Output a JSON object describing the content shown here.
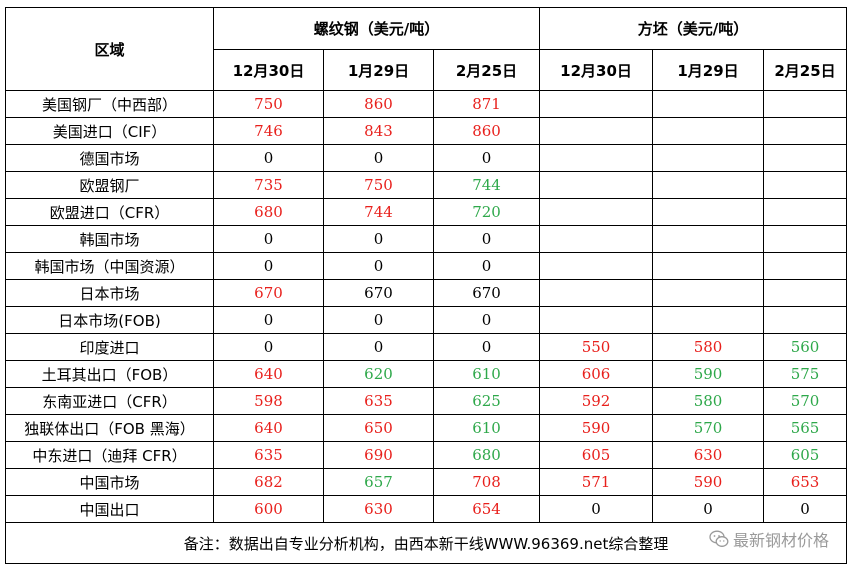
{
  "header": {
    "region_label": "区域",
    "group_rebar": "螺纹钢（美元/吨）",
    "group_billet": "方坯（美元/吨）",
    "dates": [
      "12月30日",
      "1月29日",
      "2月25日",
      "12月30日",
      "1月29日",
      "2月25日"
    ]
  },
  "colors": {
    "up": "#e8201c",
    "down": "#2ea84a",
    "flat": "#000000"
  },
  "rows": [
    {
      "region": "美国钢厂（中西部）",
      "cells": [
        [
          "750",
          "up"
        ],
        [
          "860",
          "up"
        ],
        [
          "871",
          "up"
        ],
        [
          "",
          ""
        ],
        [
          "",
          ""
        ],
        [
          "",
          ""
        ]
      ]
    },
    {
      "region": "美国进口（CIF）",
      "cells": [
        [
          "746",
          "up"
        ],
        [
          "843",
          "up"
        ],
        [
          "860",
          "up"
        ],
        [
          "",
          ""
        ],
        [
          "",
          ""
        ],
        [
          "",
          ""
        ]
      ]
    },
    {
      "region": "德国市场",
      "cells": [
        [
          "0",
          "flat"
        ],
        [
          "0",
          "flat"
        ],
        [
          "0",
          "flat"
        ],
        [
          "",
          ""
        ],
        [
          "",
          ""
        ],
        [
          "",
          ""
        ]
      ]
    },
    {
      "region": "欧盟钢厂",
      "cells": [
        [
          "735",
          "up"
        ],
        [
          "750",
          "up"
        ],
        [
          "744",
          "down"
        ],
        [
          "",
          ""
        ],
        [
          "",
          ""
        ],
        [
          "",
          ""
        ]
      ]
    },
    {
      "region": "欧盟进口（CFR）",
      "cells": [
        [
          "680",
          "up"
        ],
        [
          "744",
          "up"
        ],
        [
          "720",
          "down"
        ],
        [
          "",
          ""
        ],
        [
          "",
          ""
        ],
        [
          "",
          ""
        ]
      ]
    },
    {
      "region": "韩国市场",
      "cells": [
        [
          "0",
          "flat"
        ],
        [
          "0",
          "flat"
        ],
        [
          "0",
          "flat"
        ],
        [
          "",
          ""
        ],
        [
          "",
          ""
        ],
        [
          "",
          ""
        ]
      ]
    },
    {
      "region": "韩国市场（中国资源）",
      "cells": [
        [
          "0",
          "flat"
        ],
        [
          "0",
          "flat"
        ],
        [
          "0",
          "flat"
        ],
        [
          "",
          ""
        ],
        [
          "",
          ""
        ],
        [
          "",
          ""
        ]
      ]
    },
    {
      "region": "日本市场",
      "cells": [
        [
          "670",
          "up"
        ],
        [
          "670",
          "flat"
        ],
        [
          "670",
          "flat"
        ],
        [
          "",
          ""
        ],
        [
          "",
          ""
        ],
        [
          "",
          ""
        ]
      ]
    },
    {
      "region": "日本市场(FOB)",
      "cells": [
        [
          "0",
          "flat"
        ],
        [
          "0",
          "flat"
        ],
        [
          "0",
          "flat"
        ],
        [
          "",
          ""
        ],
        [
          "",
          ""
        ],
        [
          "",
          ""
        ]
      ]
    },
    {
      "region": "印度进口",
      "cells": [
        [
          "0",
          "flat"
        ],
        [
          "0",
          "flat"
        ],
        [
          "0",
          "flat"
        ],
        [
          "550",
          "up"
        ],
        [
          "580",
          "up"
        ],
        [
          "560",
          "down"
        ]
      ]
    },
    {
      "region": "土耳其出口（FOB）",
      "cells": [
        [
          "640",
          "up"
        ],
        [
          "620",
          "down"
        ],
        [
          "610",
          "down"
        ],
        [
          "606",
          "up"
        ],
        [
          "590",
          "down"
        ],
        [
          "575",
          "down"
        ]
      ]
    },
    {
      "region": "东南亚进口（CFR）",
      "cells": [
        [
          "598",
          "up"
        ],
        [
          "635",
          "up"
        ],
        [
          "625",
          "down"
        ],
        [
          "592",
          "up"
        ],
        [
          "580",
          "down"
        ],
        [
          "570",
          "down"
        ]
      ]
    },
    {
      "region": "独联体出口（FOB 黑海）",
      "cells": [
        [
          "640",
          "up"
        ],
        [
          "650",
          "up"
        ],
        [
          "610",
          "down"
        ],
        [
          "590",
          "up"
        ],
        [
          "570",
          "down"
        ],
        [
          "565",
          "down"
        ]
      ]
    },
    {
      "region": "中东进口（迪拜 CFR）",
      "cells": [
        [
          "635",
          "up"
        ],
        [
          "690",
          "up"
        ],
        [
          "680",
          "down"
        ],
        [
          "605",
          "up"
        ],
        [
          "630",
          "up"
        ],
        [
          "605",
          "down"
        ]
      ]
    },
    {
      "region": "中国市场",
      "cells": [
        [
          "682",
          "up"
        ],
        [
          "657",
          "down"
        ],
        [
          "708",
          "up"
        ],
        [
          "571",
          "up"
        ],
        [
          "590",
          "up"
        ],
        [
          "653",
          "up"
        ]
      ]
    },
    {
      "region": "中国出口",
      "cells": [
        [
          "600",
          "up"
        ],
        [
          "630",
          "up"
        ],
        [
          "654",
          "up"
        ],
        [
          "0",
          "flat"
        ],
        [
          "0",
          "flat"
        ],
        [
          "0",
          "flat"
        ]
      ]
    }
  ],
  "footer": {
    "note": "备注：数据出自专业分析机构，由西本新干线WWW.96369.net综合整理",
    "watermark": "最新钢材价格",
    "watermark_icon": "wechat-icon"
  }
}
